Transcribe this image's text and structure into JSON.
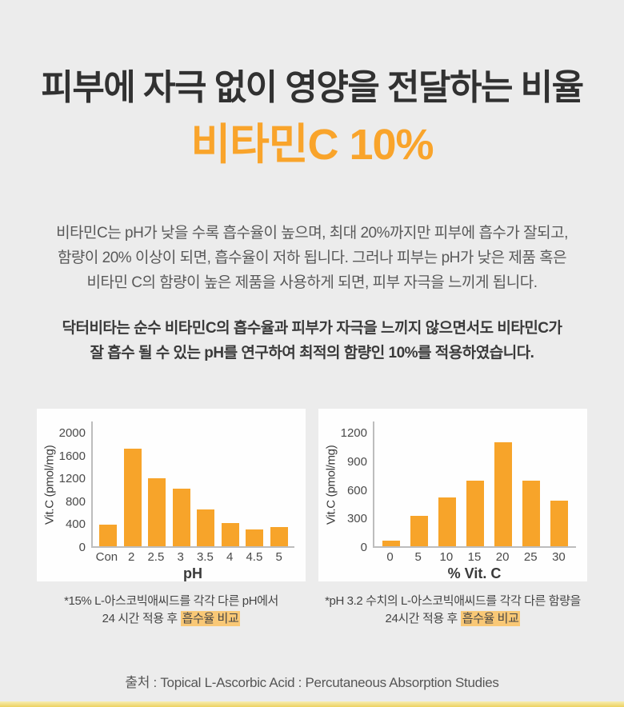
{
  "page": {
    "background_color": "#ECECEC",
    "accent_color": "#F9A42B",
    "footer_bar_color": "#EDD266",
    "title": "피부에 자극 없이 영양을 전달하는 비율",
    "subtitle": "비타민C 10%",
    "paragraph1": {
      "line1": "비타민C는 pH가 낮을 수록 흡수율이 높으며, 최대 20%까지만 피부에 흡수가 잘되고,",
      "line2": "함량이 20% 이상이 되면, 흡수율이 저하 됩니다. 그러나 피부는 pH가 낮은 제품 혹은",
      "line3": "비타민 C의 함량이 높은 제품을 사용하게 되면, 피부 자극을 느끼게 됩니다."
    },
    "paragraph2": {
      "line1": "닥터비타는 순수 비타민C의 흡수율과 피부가 자극을 느끼지 않으면서도 비타민C가",
      "line2": "잘 흡수 될 수 있는 pH를 연구하여 최적의 함량인 10%를 적용하였습니다."
    },
    "source": "출처 : Topical L-Ascorbic Acid : Percutaneous Absorption Studies"
  },
  "chart_data": [
    {
      "type": "bar",
      "categories": [
        "Con",
        "2",
        "2.5",
        "3",
        "3.5",
        "4",
        "4.5",
        "5"
      ],
      "values": [
        380,
        1700,
        1190,
        1010,
        650,
        410,
        300,
        340
      ],
      "xlabel": "pH",
      "ylabel": "Vit.C (pmol/mg)",
      "ylim": [
        0,
        2000
      ],
      "yticks": [
        0,
        400,
        800,
        1200,
        1600,
        2000
      ],
      "grid": false,
      "legend": false,
      "bar_color": "#F7A42A",
      "caption": {
        "line1": "*15% L-아스코빅애씨드를 각각 다른 pH에서",
        "line2_prefix": "24 시간 적용 후 ",
        "line2_highlight": "흡수율 비교"
      }
    },
    {
      "type": "bar",
      "categories": [
        "0",
        "5",
        "10",
        "15",
        "20",
        "25",
        "30"
      ],
      "values": [
        60,
        320,
        510,
        690,
        1090,
        690,
        480
      ],
      "xlabel": "% Vit. C",
      "ylabel": "Vit.C (pmol/mg)",
      "ylim": [
        0,
        1200
      ],
      "yticks": [
        0,
        300,
        600,
        900,
        1200
      ],
      "grid": false,
      "legend": false,
      "bar_color": "#F7A42A",
      "caption": {
        "line1": "*pH 3.2 수치의 L-아스코빅애씨드를 각각 다른 함량을",
        "line2_prefix": "24시간 적용 후 ",
        "line2_highlight": "흡수율 비교"
      }
    }
  ]
}
